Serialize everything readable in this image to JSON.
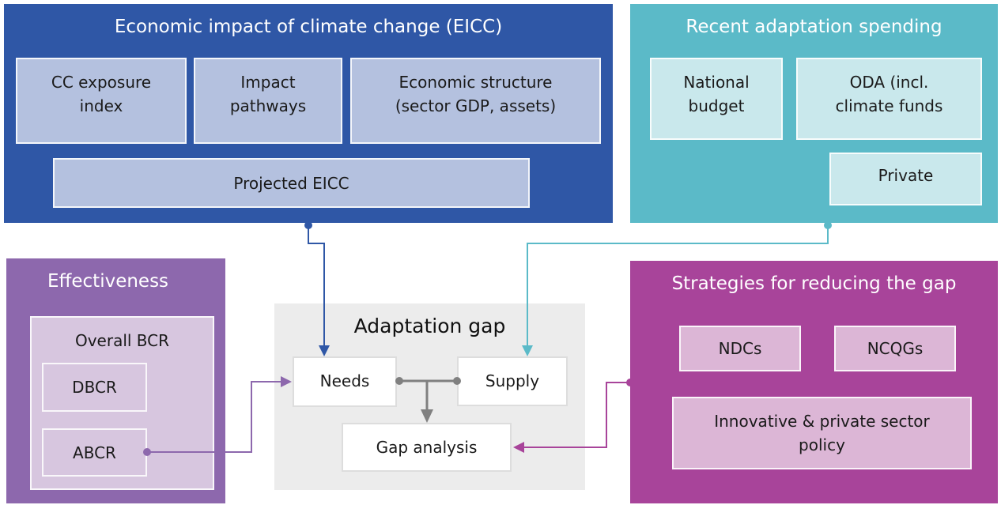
{
  "eicc": {
    "title": "Economic impact of climate change (EICC)",
    "boxes": [
      {
        "lines": [
          "CC exposure",
          "index"
        ]
      },
      {
        "lines": [
          "Impact",
          "pathways"
        ]
      },
      {
        "lines": [
          "Economic structure",
          "(sector GDP, assets)"
        ]
      },
      {
        "lines": [
          "Projected EICC"
        ]
      }
    ]
  },
  "spending": {
    "title": "Recent adaptation spending",
    "boxes": [
      {
        "lines": [
          "National",
          "budget"
        ]
      },
      {
        "lines": [
          "ODA (incl.",
          "climate funds"
        ]
      },
      {
        "lines": [
          "Private"
        ]
      }
    ]
  },
  "effectiveness": {
    "title": "Effectiveness",
    "boxes": [
      {
        "lines": [
          "Overall BCR"
        ]
      },
      {
        "lines": [
          "DBCR"
        ]
      },
      {
        "lines": [
          "ABCR"
        ]
      }
    ]
  },
  "strategies": {
    "title": "Strategies for reducing the gap",
    "boxes": [
      {
        "lines": [
          "NDCs"
        ]
      },
      {
        "lines": [
          "NCQGs"
        ]
      },
      {
        "lines": [
          "Innovative & private sector",
          "policy"
        ]
      }
    ]
  },
  "gap": {
    "title": "Adaptation gap",
    "boxes": [
      {
        "lines": [
          "Needs"
        ]
      },
      {
        "lines": [
          "Supply"
        ]
      },
      {
        "lines": [
          "Gap analysis"
        ]
      }
    ]
  }
}
